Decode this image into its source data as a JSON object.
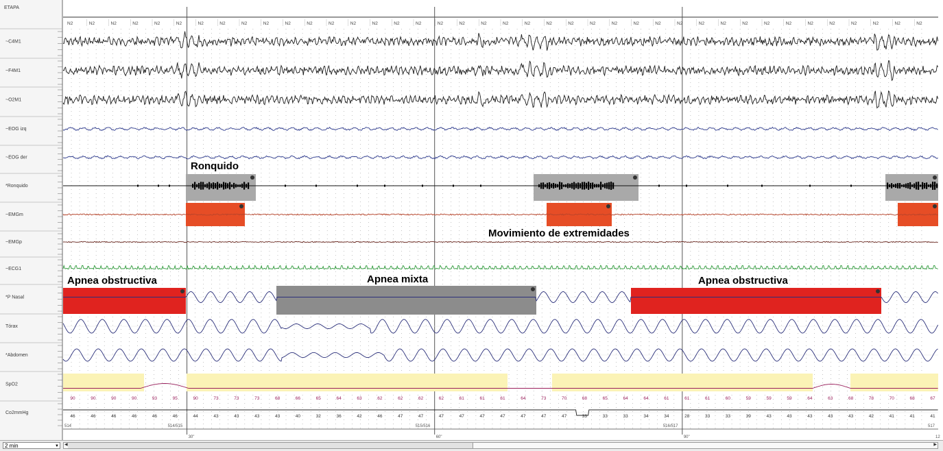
{
  "stage_header": "ETAPA",
  "stage_label": "N2",
  "channels": [
    {
      "name": "~C4M1",
      "color": "#1c1c1c",
      "type": "eeg"
    },
    {
      "name": "~F4M1",
      "color": "#1c1c1c",
      "type": "eeg"
    },
    {
      "name": "~O2M1",
      "color": "#1c1c1c",
      "type": "eeg"
    },
    {
      "name": "~EOG izq",
      "color": "#2f3c8f",
      "type": "eog"
    },
    {
      "name": "~EOG der",
      "color": "#2f3c8f",
      "type": "eog"
    },
    {
      "name": "*Ronquido",
      "color": "#111111",
      "type": "snore"
    },
    {
      "name": "~EMGm",
      "color": "#b8442a",
      "type": "emg"
    },
    {
      "name": "~EMGp",
      "color": "#6b2a22",
      "type": "emg2"
    },
    {
      "name": "~ECG1",
      "color": "#2e9a3a",
      "type": "ecg"
    },
    {
      "name": "*P Nasal",
      "color": "#2a2f7a",
      "type": "flow"
    },
    {
      "name": "Tórax",
      "color": "#2a2f7a",
      "type": "resp"
    },
    {
      "name": "*Abdomen",
      "color": "#2a2f7a",
      "type": "resp2"
    },
    {
      "name": "SpO2",
      "color": "#9a1f5c",
      "type": "spo2"
    },
    {
      "name": "Co2mmHg",
      "color": "#222222",
      "type": "co2"
    }
  ],
  "time_marks": [
    "30\"",
    "60\"",
    "90\"",
    "12"
  ],
  "epoch_marks": [
    "514",
    "514/515",
    "515/516",
    "516/517",
    "517"
  ],
  "annotations": {
    "snore": "Ronquido",
    "limb": "Movimiento de extremidades",
    "apnea_obstructive_1": "Apnea obstructiva",
    "apnea_mixed": "Apnea mixta",
    "apnea_obstructive_2": "Apnea obstructiva"
  },
  "spo2_values": [
    "90",
    "90",
    "90",
    "90",
    "93",
    "95",
    "90",
    "73",
    "73",
    "73",
    "68",
    "66",
    "65",
    "64",
    "63",
    "62",
    "62",
    "62",
    "62",
    "61",
    "61",
    "61",
    "64",
    "73",
    "70",
    "68",
    "65",
    "64",
    "64",
    "61",
    "61",
    "61",
    "60",
    "59",
    "59",
    "59",
    "64",
    "63",
    "68",
    "78",
    "70",
    "68",
    "67"
  ],
  "co2_values": [
    "46",
    "46",
    "46",
    "46",
    "46",
    "46",
    "44",
    "43",
    "43",
    "43",
    "43",
    "40",
    "32",
    "36",
    "42",
    "46",
    "47",
    "47",
    "47",
    "47",
    "47",
    "47",
    "47",
    "47",
    "47",
    "33",
    "33",
    "33",
    "34",
    "34",
    "28",
    "33",
    "33",
    "39",
    "43",
    "43",
    "43",
    "43",
    "43",
    "42",
    "41",
    "41",
    "41"
  ],
  "colors": {
    "apnea_obstructive": "#e0231f",
    "apnea_mixed": "#8c8c8c",
    "snore_event": "#a9a9a9",
    "limb_movement": "#e64d26",
    "desaturation": "#fbf3b6",
    "grid_dots": "#9a9a9a"
  },
  "controls": {
    "zoom": "2 min"
  }
}
